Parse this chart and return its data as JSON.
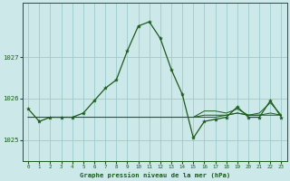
{
  "background_color": "#cce8e8",
  "plot_bg_color": "#cce8e8",
  "grid_color": "#99cccc",
  "line_color": "#1a5c1a",
  "marker_color": "#1a5c1a",
  "xlabel": "Graphe pression niveau de la mer (hPa)",
  "xlim": [
    -0.5,
    23.5
  ],
  "ylim": [
    1024.5,
    1028.3
  ],
  "yticks": [
    1025,
    1026,
    1027
  ],
  "xticks": [
    0,
    1,
    2,
    3,
    4,
    5,
    6,
    7,
    8,
    9,
    10,
    11,
    12,
    13,
    14,
    15,
    16,
    17,
    18,
    19,
    20,
    21,
    22,
    23
  ],
  "main_x": [
    0,
    1,
    2,
    3,
    4,
    5,
    6,
    7,
    8,
    9,
    10,
    11,
    12,
    13,
    14,
    15,
    16,
    17,
    18,
    19,
    20,
    21,
    22,
    23
  ],
  "main_y": [
    1025.75,
    1025.45,
    1025.55,
    1025.55,
    1025.55,
    1025.65,
    1025.95,
    1026.25,
    1026.45,
    1027.15,
    1027.75,
    1027.85,
    1027.45,
    1026.7,
    1026.1,
    1025.05,
    1025.45,
    1025.5,
    1025.55,
    1025.8,
    1025.55,
    1025.55,
    1025.95,
    1025.55
  ],
  "extra_lines": [
    [
      1025.55,
      1025.55,
      1025.55,
      1025.55,
      1025.55,
      1025.55,
      1025.55,
      1025.55,
      1025.55,
      1025.55,
      1025.55,
      1025.55,
      1025.55,
      1025.55,
      1025.55,
      1025.55,
      1025.6,
      1025.6,
      1025.6,
      1025.65,
      1025.6,
      1025.6,
      1025.6,
      1025.6
    ],
    [
      1025.55,
      1025.55,
      1025.55,
      1025.55,
      1025.55,
      1025.55,
      1025.55,
      1025.55,
      1025.55,
      1025.55,
      1025.55,
      1025.55,
      1025.55,
      1025.55,
      1025.55,
      1025.55,
      1025.55,
      1025.55,
      1025.6,
      1025.65,
      1025.6,
      1025.65,
      1025.9,
      1025.6
    ],
    [
      1025.55,
      1025.55,
      1025.55,
      1025.55,
      1025.55,
      1025.55,
      1025.55,
      1025.55,
      1025.55,
      1025.55,
      1025.55,
      1025.55,
      1025.55,
      1025.55,
      1025.55,
      1025.55,
      1025.7,
      1025.7,
      1025.65,
      1025.75,
      1025.6,
      1025.6,
      1025.65,
      1025.6
    ]
  ]
}
